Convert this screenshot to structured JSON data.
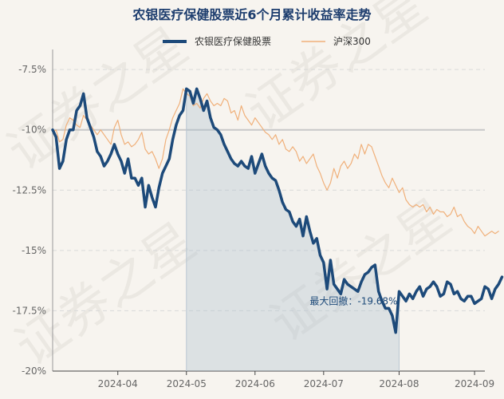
{
  "chart_data": {
    "type": "line",
    "title": "农银医疗保健股票近6个月累计收益率走势",
    "watermark": "证券之星",
    "y_unit": "%",
    "ylim": [
      -20,
      -6.8
    ],
    "yticks": [
      -7.5,
      -10,
      -12.5,
      -15,
      -17.5,
      -20
    ],
    "ytick_labels": [
      "-7.5%",
      "-10%",
      "-12.5%",
      "-15%",
      "-17.5%",
      "-20%"
    ],
    "x_range": [
      0,
      126
    ],
    "xticks": [
      {
        "x": 19,
        "label": "2024-04"
      },
      {
        "x": 39,
        "label": "2024-05"
      },
      {
        "x": 59,
        "label": "2024-06"
      },
      {
        "x": 79,
        "label": "2024-07"
      },
      {
        "x": 101,
        "label": "2024-08"
      },
      {
        "x": 123,
        "label": "2024-09"
      }
    ],
    "legend": {
      "position": "top-center"
    },
    "series": [
      {
        "name": "农银医疗保健股票",
        "color": "#1d4a7a",
        "values": [
          -10.0,
          -10.3,
          -11.6,
          -11.3,
          -10.4,
          -10.0,
          -10.0,
          -9.2,
          -9.0,
          -8.5,
          -9.5,
          -9.9,
          -10.3,
          -10.9,
          -11.1,
          -11.5,
          -11.3,
          -11.0,
          -10.6,
          -11.0,
          -11.3,
          -11.8,
          -11.2,
          -12.0,
          -12.0,
          -12.3,
          -12.0,
          -13.2,
          -12.3,
          -12.8,
          -13.2,
          -12.4,
          -11.8,
          -11.5,
          -11.2,
          -10.4,
          -9.8,
          -9.4,
          -9.2,
          -8.3,
          -8.4,
          -8.9,
          -8.3,
          -8.7,
          -9.2,
          -8.8,
          -9.5,
          -9.9,
          -10.0,
          -10.2,
          -10.6,
          -10.9,
          -11.2,
          -11.4,
          -11.5,
          -11.3,
          -11.5,
          -11.6,
          -11.1,
          -11.8,
          -11.4,
          -11.0,
          -11.5,
          -11.8,
          -12.0,
          -12.1,
          -12.5,
          -13.0,
          -13.3,
          -13.4,
          -13.8,
          -14.0,
          -13.7,
          -14.4,
          -13.6,
          -14.2,
          -14.7,
          -14.5,
          -15.2,
          -15.5,
          -16.6,
          -15.4,
          -16.4,
          -16.6,
          -16.8,
          -16.2,
          -16.4,
          -16.5,
          -16.6,
          -16.7,
          -16.3,
          -16.0,
          -15.9,
          -15.7,
          -15.6,
          -16.7,
          -17.1,
          -17.4,
          -17.4,
          -17.7,
          -18.4,
          -16.7,
          -16.9,
          -17.1,
          -16.8,
          -17.0,
          -16.7,
          -16.5,
          -16.9,
          -16.6,
          -16.5,
          -16.3,
          -16.5,
          -16.9,
          -16.8,
          -16.3,
          -16.4,
          -16.8,
          -16.7,
          -17.0,
          -17.1,
          -16.9,
          -16.9,
          -17.2,
          -17.1,
          -17.0,
          -16.5,
          -16.6,
          -17.0,
          -16.6,
          -16.4,
          -16.1
        ]
      },
      {
        "name": "沪深300",
        "color": "#f0b07a",
        "values": [
          -10.1,
          -10.0,
          -10.5,
          -10.4,
          -9.8,
          -9.5,
          -9.6,
          -9.8,
          -9.9,
          -9.4,
          -9.6,
          -9.8,
          -10.0,
          -10.2,
          -10.0,
          -10.2,
          -10.4,
          -10.6,
          -9.9,
          -9.6,
          -10.2,
          -10.6,
          -10.5,
          -10.7,
          -10.6,
          -10.4,
          -10.1,
          -10.8,
          -11.0,
          -10.9,
          -11.2,
          -11.6,
          -11.2,
          -10.4,
          -10.0,
          -9.5,
          -9.2,
          -8.9,
          -8.3,
          -8.5,
          -8.6,
          -9.0,
          -8.9,
          -9.1,
          -8.7,
          -8.5,
          -8.8,
          -9.0,
          -8.9,
          -9.0,
          -8.7,
          -8.8,
          -9.3,
          -9.2,
          -9.6,
          -9.0,
          -9.4,
          -9.6,
          -9.8,
          -9.5,
          -9.7,
          -9.9,
          -10.1,
          -10.2,
          -10.4,
          -10.2,
          -10.6,
          -10.4,
          -10.8,
          -10.9,
          -10.7,
          -10.9,
          -11.3,
          -11.1,
          -11.4,
          -11.2,
          -11.0,
          -11.5,
          -11.8,
          -12.2,
          -12.5,
          -12.2,
          -11.6,
          -12.0,
          -11.5,
          -11.3,
          -11.6,
          -11.4,
          -11.0,
          -11.2,
          -10.6,
          -11.0,
          -10.6,
          -10.7,
          -11.1,
          -11.5,
          -11.9,
          -12.2,
          -12.4,
          -12.0,
          -12.3,
          -12.6,
          -12.4,
          -12.9,
          -13.1,
          -13.2,
          -13.1,
          -13.2,
          -13.1,
          -13.4,
          -13.2,
          -13.5,
          -13.3,
          -13.4,
          -13.4,
          -13.6,
          -13.5,
          -13.2,
          -13.6,
          -13.5,
          -13.8,
          -14.0,
          -14.1,
          -14.3,
          -14.0,
          -14.2,
          -14.4,
          -14.3,
          -14.2,
          -14.3,
          -14.2
        ]
      }
    ],
    "shaded_region": {
      "x_start": 39,
      "x_end": 101
    },
    "annotation": {
      "text": "最大回撤：-19.68%",
      "x": 101
    }
  }
}
